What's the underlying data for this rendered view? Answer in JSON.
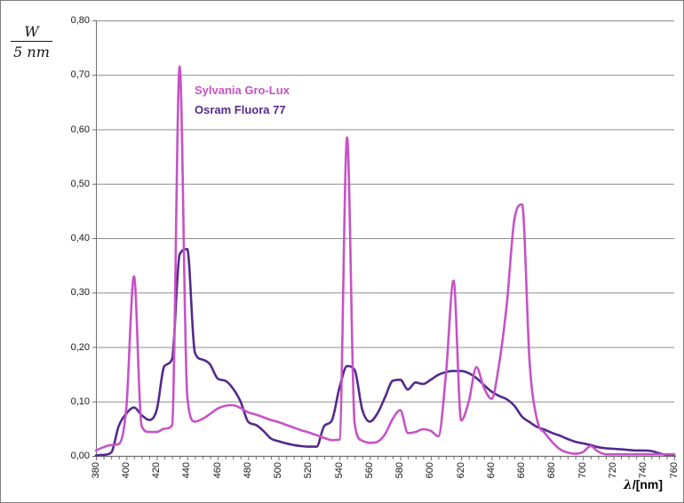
{
  "chart_data": {
    "type": "line",
    "title": "",
    "xlabel_lambda": "λ",
    "xlabel_rest": "/[nm]",
    "ylabel_numerator": "W",
    "ylabel_denominator": "5 nm",
    "xlim": [
      380,
      760
    ],
    "ylim": [
      0,
      0.8
    ],
    "x_minor_tick_step": 5,
    "x_label_step": 20,
    "grid": "horizontal-only",
    "legend_position": "inside-top-left",
    "x_tick_labels": [
      380,
      400,
      420,
      440,
      460,
      480,
      500,
      520,
      540,
      560,
      580,
      600,
      620,
      640,
      660,
      680,
      700,
      720,
      740,
      760
    ],
    "y_tick_values": [
      0,
      0.1,
      0.2,
      0.3,
      0.4,
      0.5,
      0.6,
      0.7,
      0.8
    ],
    "y_tick_labels": [
      "0,00",
      "0,10",
      "0,20",
      "0,30",
      "0,40",
      "0,50",
      "0,60",
      "0,70",
      "0,80"
    ],
    "style": {
      "grid_color": "#8e8e8e",
      "axis_color": "#6f6f6f",
      "line_width": 2.6
    },
    "x": [
      380,
      385,
      390,
      395,
      400,
      405,
      410,
      415,
      420,
      425,
      430,
      435,
      440,
      445,
      450,
      455,
      460,
      465,
      470,
      475,
      480,
      485,
      490,
      495,
      500,
      505,
      510,
      515,
      520,
      525,
      530,
      535,
      540,
      545,
      550,
      555,
      560,
      565,
      570,
      575,
      580,
      585,
      590,
      595,
      600,
      605,
      610,
      615,
      620,
      625,
      630,
      635,
      640,
      645,
      650,
      655,
      660,
      665,
      670,
      675,
      680,
      685,
      690,
      695,
      700,
      705,
      710,
      715,
      720,
      725,
      730,
      735,
      740,
      745,
      750,
      755,
      760
    ],
    "series": [
      {
        "name": "Sylvania Gro-Lux",
        "color": "#c653c6",
        "values": [
          0.01,
          0.016,
          0.02,
          0.022,
          0.09,
          0.33,
          0.055,
          0.044,
          0.044,
          0.05,
          0.056,
          0.715,
          0.11,
          0.063,
          0.068,
          0.077,
          0.087,
          0.092,
          0.093,
          0.088,
          0.08,
          0.076,
          0.071,
          0.066,
          0.062,
          0.057,
          0.052,
          0.047,
          0.043,
          0.038,
          0.033,
          0.029,
          0.03,
          0.585,
          0.06,
          0.028,
          0.024,
          0.026,
          0.04,
          0.068,
          0.084,
          0.042,
          0.044,
          0.049,
          0.046,
          0.036,
          0.15,
          0.322,
          0.065,
          0.1,
          0.163,
          0.125,
          0.105,
          0.17,
          0.28,
          0.435,
          0.462,
          0.17,
          0.065,
          0.042,
          0.025,
          0.012,
          0.006,
          0.004,
          0.007,
          0.018,
          0.008,
          0.003,
          0.003,
          0.003,
          0.003,
          0.003,
          0.003,
          0.003,
          0.003,
          0.003,
          0.003
        ]
      },
      {
        "name": "Osram Fluora 77",
        "color": "#542a8c",
        "values": [
          0.001,
          0.002,
          0.006,
          0.055,
          0.078,
          0.089,
          0.075,
          0.066,
          0.085,
          0.165,
          0.178,
          0.37,
          0.38,
          0.19,
          0.177,
          0.168,
          0.142,
          0.138,
          0.124,
          0.1,
          0.063,
          0.057,
          0.046,
          0.032,
          0.027,
          0.023,
          0.02,
          0.018,
          0.017,
          0.017,
          0.055,
          0.065,
          0.125,
          0.165,
          0.158,
          0.085,
          0.063,
          0.078,
          0.108,
          0.138,
          0.14,
          0.122,
          0.135,
          0.132,
          0.14,
          0.149,
          0.154,
          0.156,
          0.156,
          0.152,
          0.143,
          0.13,
          0.118,
          0.11,
          0.104,
          0.092,
          0.072,
          0.062,
          0.053,
          0.048,
          0.042,
          0.037,
          0.031,
          0.026,
          0.023,
          0.02,
          0.016,
          0.014,
          0.013,
          0.012,
          0.011,
          0.01,
          0.01,
          0.009,
          0.005,
          0.002,
          0.002
        ]
      }
    ]
  }
}
